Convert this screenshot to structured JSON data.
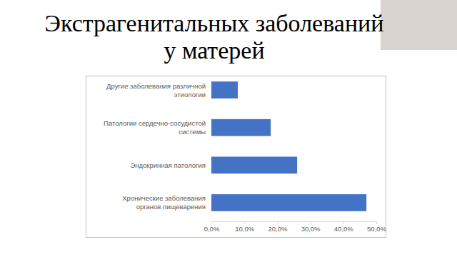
{
  "chart_data": {
    "type": "bar",
    "orientation": "horizontal",
    "title": "Экстрагенитальных заболеваний у матерей",
    "categories": [
      "Другие заболевания различной этиологии",
      "Патологии сердечно-сосудистой системы",
      "Эндокринная патология",
      "Хронические заболевания органов пищеварения"
    ],
    "values": [
      8,
      18,
      26,
      47
    ],
    "color": "#4472c4",
    "xlim": [
      0,
      50
    ],
    "xticks": [
      {
        "value": 0,
        "label": "0,0%"
      },
      {
        "value": 10,
        "label": "10,0%"
      },
      {
        "value": 20,
        "label": "20,0%"
      },
      {
        "value": 30,
        "label": "30,0%"
      },
      {
        "value": 40,
        "label": "40,0%"
      },
      {
        "value": 50,
        "label": "50,0%"
      }
    ],
    "grid": false
  }
}
